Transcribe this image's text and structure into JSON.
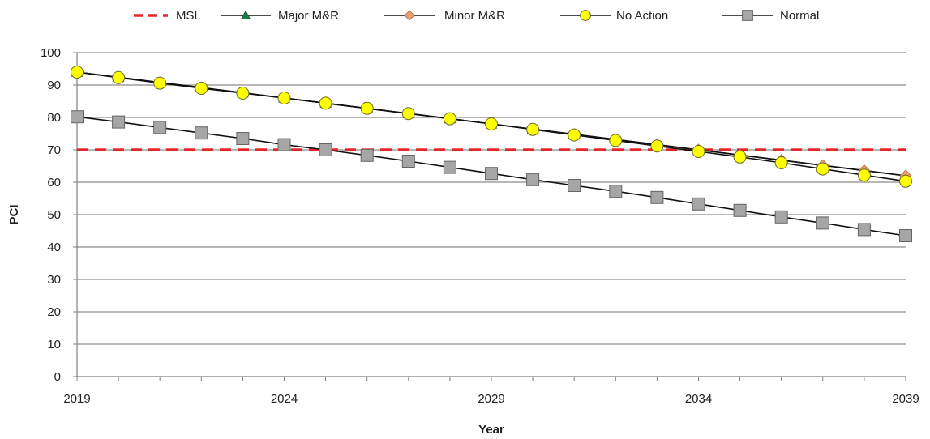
{
  "chart_data": {
    "type": "line",
    "title": "",
    "xlabel": "Year",
    "ylabel": "PCI",
    "xlim": [
      2019,
      2039
    ],
    "ylim": [
      0,
      100
    ],
    "x_ticks": [
      "2019",
      "2024",
      "2029",
      "2034",
      "2039"
    ],
    "y_ticks": [
      "0",
      "10",
      "20",
      "30",
      "40",
      "50",
      "60",
      "70",
      "80",
      "90",
      "100"
    ],
    "grid": "horizontal",
    "legend": "top",
    "x": [
      2019,
      2020,
      2021,
      2022,
      2023,
      2024,
      2025,
      2026,
      2027,
      2028,
      2029,
      2030,
      2031,
      2032,
      2033,
      2034,
      2035,
      2036,
      2037,
      2038,
      2039
    ],
    "series": [
      {
        "name": "MSL",
        "style": "dashed",
        "color": "#e8262a",
        "marker": "none",
        "values": [
          70,
          70,
          70,
          70,
          70,
          70,
          70,
          70,
          70,
          70,
          70,
          70,
          70,
          70,
          70,
          70,
          70,
          70,
          70,
          70,
          70
        ]
      },
      {
        "name": "Major M&R",
        "color": "#1f7a4a",
        "marker": "triangle",
        "values": [
          94,
          92.4,
          90.8,
          89.2,
          87.6,
          86,
          84.4,
          82.8,
          81.2,
          79.6,
          78,
          76.4,
          74.8,
          73.2,
          71.6,
          70,
          68.4,
          66.8,
          65.2,
          63.6,
          62
        ]
      },
      {
        "name": "Minor M&R",
        "color": "#e8a070",
        "marker": "diamond",
        "values": [
          94,
          92.4,
          90.8,
          89.2,
          87.6,
          86,
          84.4,
          82.8,
          81.2,
          79.6,
          78,
          76.4,
          74.8,
          73.2,
          71.6,
          70,
          68.4,
          66.8,
          65.2,
          63.6,
          62
        ]
      },
      {
        "name": "No Action",
        "color": "#ffff00",
        "marker": "circle",
        "values": [
          94,
          92.3,
          90.6,
          89,
          87.5,
          86,
          84.4,
          82.8,
          81.2,
          79.6,
          78,
          76.3,
          74.6,
          72.9,
          71.2,
          69.5,
          67.8,
          66,
          64.1,
          62.2,
          60.3
        ]
      },
      {
        "name": "Normal",
        "color": "#a6a6a6",
        "marker": "square",
        "values": [
          80.2,
          78.6,
          76.9,
          75.2,
          73.5,
          71.6,
          70,
          68.3,
          66.5,
          64.6,
          62.7,
          60.8,
          59,
          57.2,
          55.3,
          53.3,
          51.3,
          49.3,
          47.4,
          45.4,
          43.5
        ]
      }
    ]
  }
}
